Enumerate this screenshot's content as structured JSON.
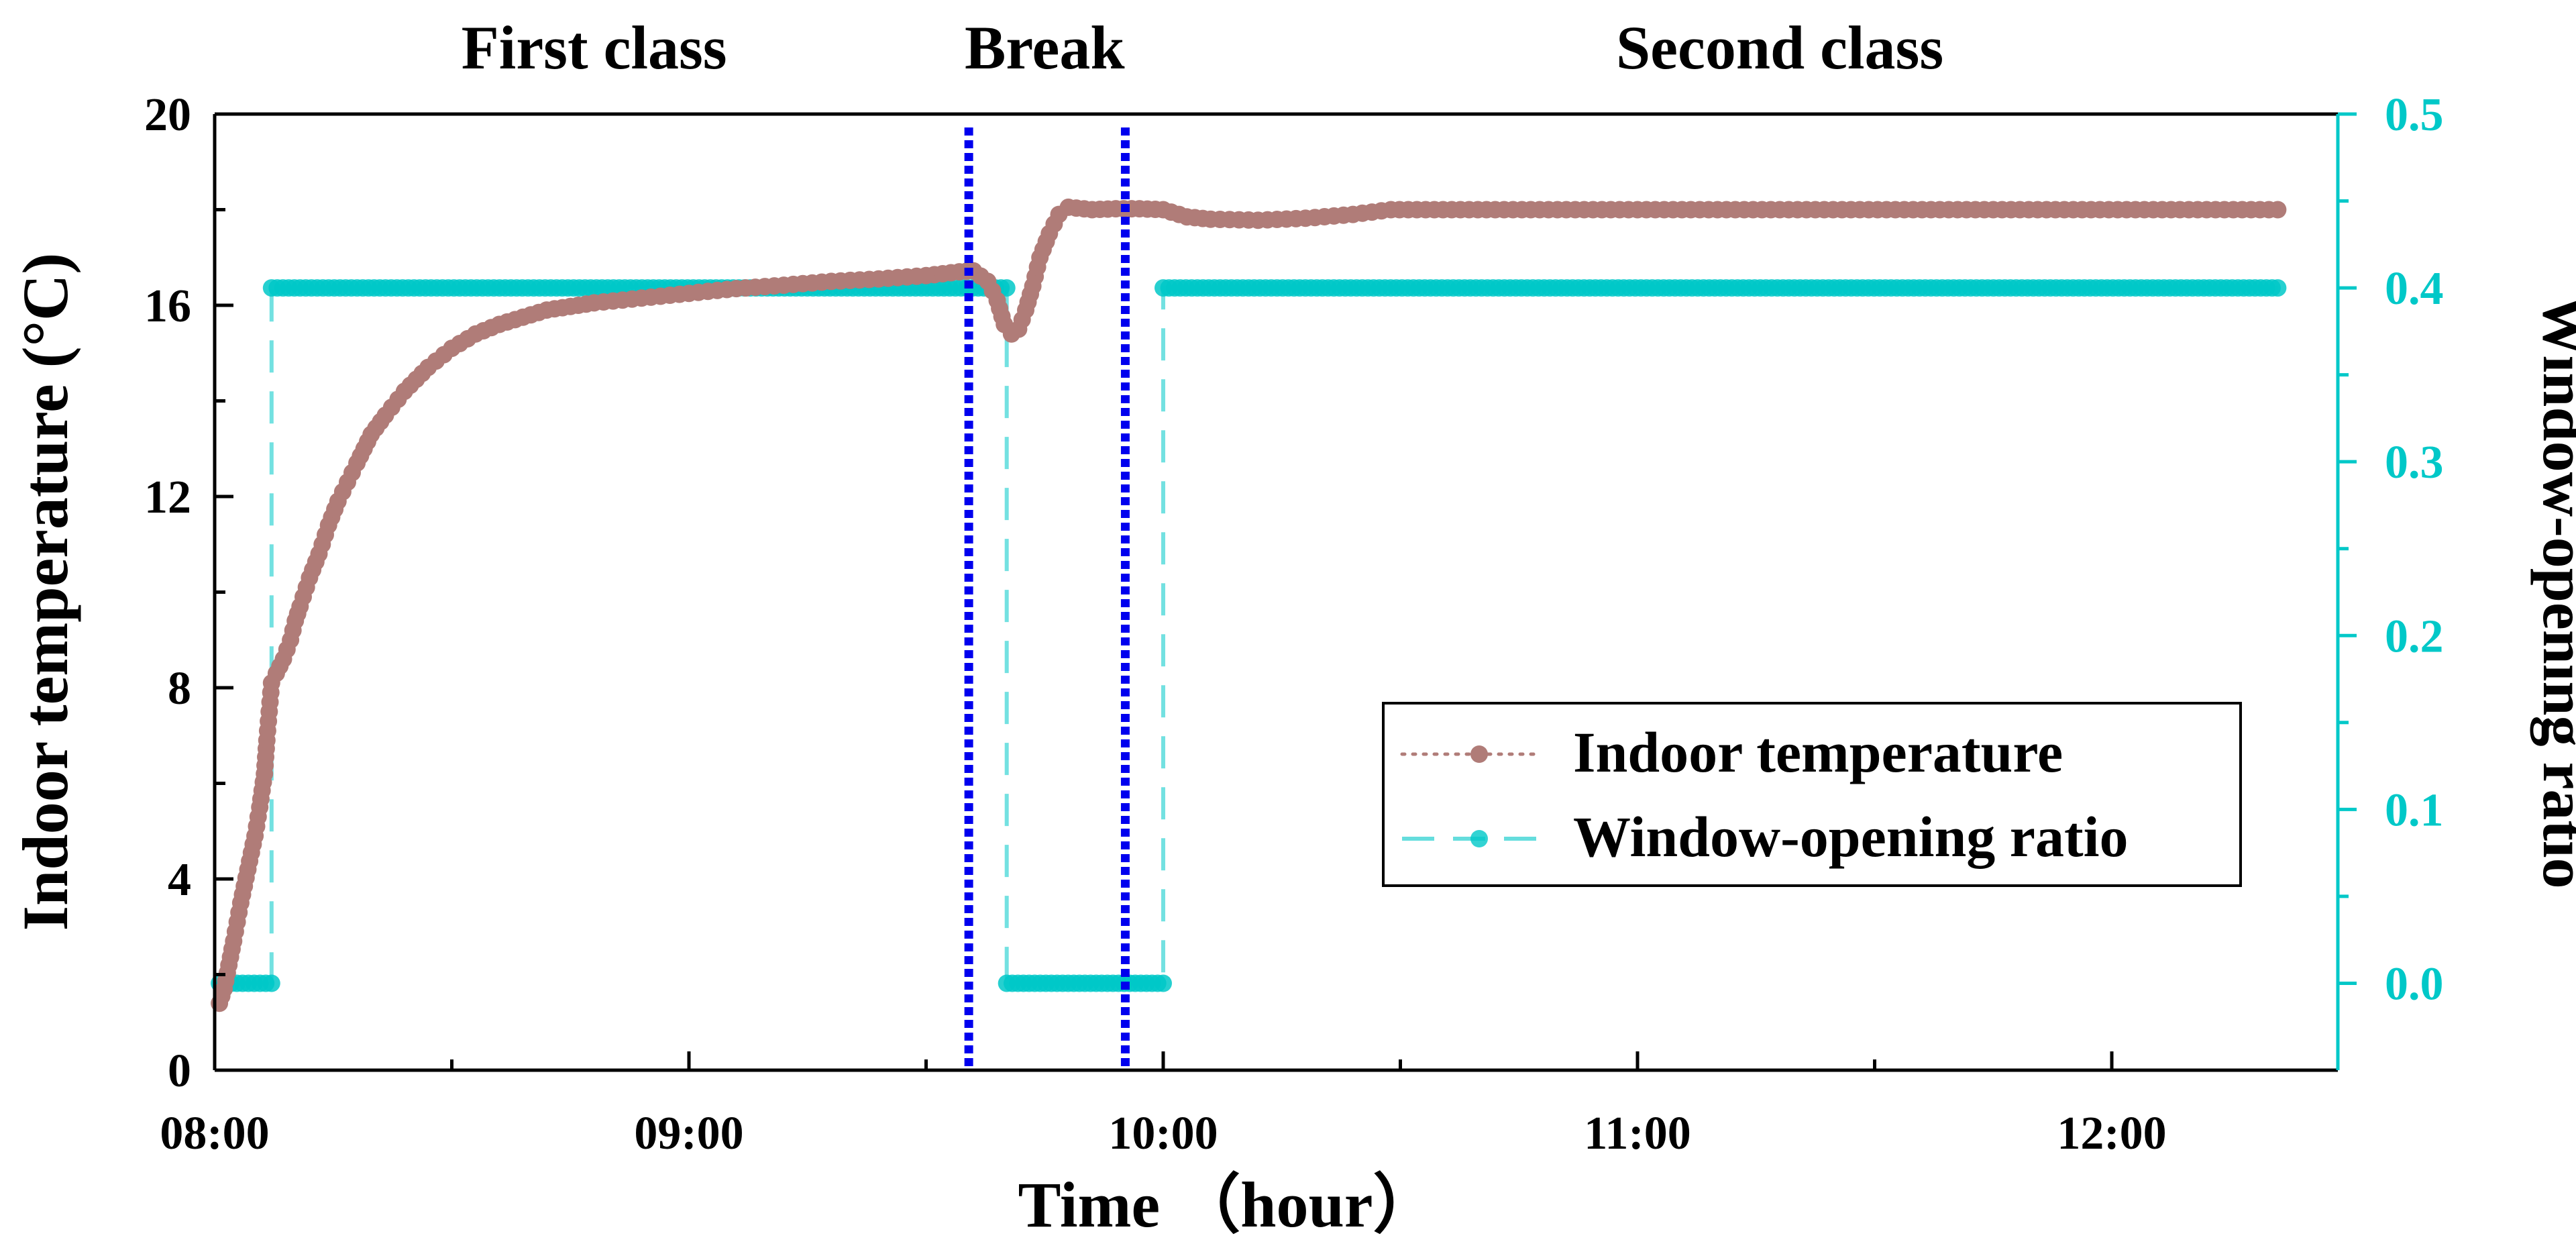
{
  "chart_data": {
    "type": "line",
    "x_unit": "hours after 08:00",
    "xlim": [
      0,
      4.5
    ],
    "xlabel": "Time （hour）",
    "x_ticks": [
      {
        "value": 0,
        "label": "08:00"
      },
      {
        "value": 1,
        "label": "09:00"
      },
      {
        "value": 2,
        "label": "10:00"
      },
      {
        "value": 3,
        "label": "11:00"
      },
      {
        "value": 4,
        "label": "12:00"
      }
    ],
    "y_left": {
      "label": "Indoor temperature (°C)",
      "range": [
        0,
        20
      ],
      "ticks": [
        0,
        4,
        8,
        12,
        16,
        20
      ],
      "tick_labels": [
        "0",
        "4",
        "8",
        "12",
        "16",
        "20"
      ]
    },
    "y_right": {
      "label": "Window-opening ratio",
      "range": [
        -0.05,
        0.5
      ],
      "ticks": [
        0.0,
        0.1,
        0.2,
        0.3,
        0.4,
        0.5
      ],
      "tick_labels": [
        "0.0",
        "0.1",
        "0.2",
        "0.3",
        "0.4",
        "0.5"
      ]
    },
    "period_labels": [
      {
        "text": "First class",
        "x": 0.8
      },
      {
        "text": "Break",
        "x": 1.75
      },
      {
        "text": "Second class",
        "x": 3.3
      }
    ],
    "period_dividers": [
      1.59,
      1.92
    ],
    "series": [
      {
        "name": "Indoor temperature",
        "axis": "left",
        "color": "#b07c78",
        "style": "dotted-with-markers",
        "points": [
          [
            0.01,
            1.4
          ],
          [
            0.02,
            1.7
          ],
          [
            0.04,
            2.7
          ],
          [
            0.055,
            3.5
          ],
          [
            0.07,
            4.2
          ],
          [
            0.085,
            4.9
          ],
          [
            0.095,
            5.5
          ],
          [
            0.105,
            6.2
          ],
          [
            0.11,
            6.9
          ],
          [
            0.115,
            7.5
          ],
          [
            0.12,
            8.1
          ],
          [
            0.13,
            8.3
          ],
          [
            0.145,
            8.6
          ],
          [
            0.16,
            9.0
          ],
          [
            0.17,
            9.4
          ],
          [
            0.18,
            9.7
          ],
          [
            0.2,
            10.3
          ],
          [
            0.22,
            10.8
          ],
          [
            0.24,
            11.4
          ],
          [
            0.26,
            11.9
          ],
          [
            0.28,
            12.3
          ],
          [
            0.3,
            12.7
          ],
          [
            0.33,
            13.3
          ],
          [
            0.36,
            13.7
          ],
          [
            0.4,
            14.2
          ],
          [
            0.45,
            14.7
          ],
          [
            0.5,
            15.1
          ],
          [
            0.55,
            15.4
          ],
          [
            0.6,
            15.6
          ],
          [
            0.7,
            15.9
          ],
          [
            0.8,
            16.05
          ],
          [
            0.9,
            16.15
          ],
          [
            1.0,
            16.25
          ],
          [
            1.1,
            16.35
          ],
          [
            1.2,
            16.42
          ],
          [
            1.3,
            16.5
          ],
          [
            1.4,
            16.55
          ],
          [
            1.5,
            16.62
          ],
          [
            1.57,
            16.7
          ],
          [
            1.6,
            16.72
          ],
          [
            1.63,
            16.5
          ],
          [
            1.65,
            16.1
          ],
          [
            1.665,
            15.6
          ],
          [
            1.68,
            15.4
          ],
          [
            1.695,
            15.5
          ],
          [
            1.71,
            15.9
          ],
          [
            1.725,
            16.4
          ],
          [
            1.74,
            17.0
          ],
          [
            1.76,
            17.5
          ],
          [
            1.78,
            17.9
          ],
          [
            1.8,
            18.05
          ],
          [
            1.85,
            18.0
          ],
          [
            1.9,
            18.02
          ],
          [
            1.95,
            18.02
          ],
          [
            2.0,
            18.0
          ],
          [
            2.05,
            17.85
          ],
          [
            2.1,
            17.8
          ],
          [
            2.2,
            17.78
          ],
          [
            2.3,
            17.82
          ],
          [
            2.4,
            17.9
          ],
          [
            2.48,
            18.0
          ],
          [
            2.7,
            18.0
          ],
          [
            3.0,
            18.0
          ],
          [
            3.3,
            18.0
          ],
          [
            3.6,
            18.0
          ],
          [
            3.9,
            18.0
          ],
          [
            4.2,
            18.0
          ],
          [
            4.35,
            18.0
          ]
        ]
      },
      {
        "name": "Window-opening ratio",
        "axis": "right",
        "color": "#00c8c8",
        "style": "dashed-with-markers",
        "points": [
          [
            0.01,
            0.0
          ],
          [
            0.12,
            0.0
          ],
          [
            0.12,
            0.4
          ],
          [
            1.67,
            0.4
          ],
          [
            1.67,
            0.0
          ],
          [
            2.0,
            0.0
          ],
          [
            2.0,
            0.4
          ],
          [
            4.35,
            0.4
          ]
        ]
      }
    ],
    "legend": {
      "position": "lower-right",
      "entries": [
        "Indoor temperature",
        "Window-opening ratio"
      ]
    }
  }
}
